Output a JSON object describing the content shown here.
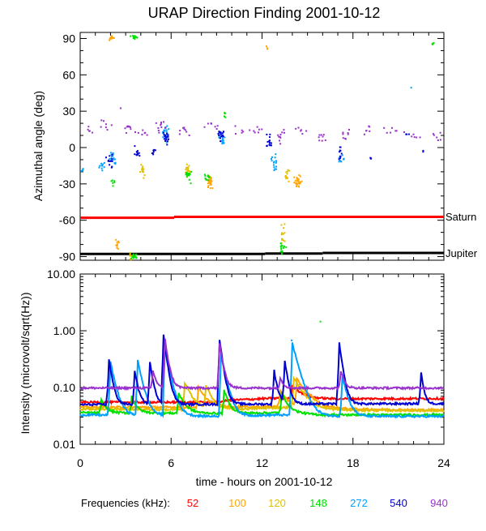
{
  "chart_data": [
    {
      "type": "scatter",
      "title": "URAP Direction Finding  2001-10-12",
      "ylabel": "Azimuthal angle (deg)",
      "ylim": [
        -93,
        95
      ],
      "xlim": [
        0,
        24
      ],
      "yticks": [
        -90,
        -60,
        -30,
        0,
        30,
        60,
        90
      ],
      "reference_lines": [
        {
          "name": "Saturn",
          "color": "#ff0000",
          "segments": [
            [
              0,
              -58,
              6.2,
              -58
            ],
            [
              6.2,
              -57.2,
              24,
              -57.2
            ]
          ]
        },
        {
          "name": "Jupiter",
          "color": "#000000",
          "segments": [
            [
              0,
              -87.8,
              12.2,
              -87.8
            ],
            [
              12.2,
              -87.5,
              16.0,
              -87.5
            ],
            [
              16.0,
              -87.0,
              24,
              -87.0
            ]
          ]
        }
      ],
      "series": [
        {
          "name": "100",
          "color": "#ffa500",
          "clusters": [
            [
              2.0,
              91,
              0.4,
              3,
              14
            ],
            [
              2.4,
              -80,
              0.3,
              6,
              10
            ],
            [
              8.5,
              -28,
              0.3,
              7,
              28
            ],
            [
              14.3,
              -27,
              0.3,
              7,
              30
            ],
            [
              12.3,
              83,
              0.1,
              2,
              3
            ]
          ]
        },
        {
          "name": "120",
          "color": "#e0c000",
          "clusters": [
            [
              4.1,
              -20,
              0.3,
              8,
              14
            ],
            [
              7.0,
              -18,
              0.3,
              7,
              16
            ],
            [
              13.6,
              -22,
              0.2,
              8,
              14
            ],
            [
              3.3,
              -88,
              0.2,
              4,
              8
            ],
            [
              13.3,
              -70,
              0.2,
              12,
              14
            ]
          ]
        },
        {
          "name": "148",
          "color": "#00e000",
          "clusters": [
            [
              3.5,
              92,
              0.3,
              3,
              16
            ],
            [
              3.5,
              -89,
              0.3,
              3,
              18
            ],
            [
              7.1,
              -22,
              0.3,
              8,
              18
            ],
            [
              9.5,
              28,
              0.1,
              3,
              6
            ],
            [
              13.3,
              -83,
              0.3,
              8,
              14
            ],
            [
              8.3,
              -24,
              0.3,
              6,
              10
            ],
            [
              2.1,
              -28,
              0.2,
              5,
              6
            ],
            [
              23.2,
              86,
              0.1,
              2,
              4
            ]
          ]
        },
        {
          "name": "272",
          "color": "#00a0ff",
          "clusters": [
            [
              0.1,
              -18,
              0.1,
              5,
              5
            ],
            [
              1.4,
              -14,
              0.3,
              6,
              10
            ],
            [
              2.1,
              -8,
              0.3,
              9,
              18
            ],
            [
              5.6,
              12,
              0.3,
              10,
              24
            ],
            [
              9.3,
              8,
              0.3,
              8,
              20
            ],
            [
              12.8,
              -12,
              0.3,
              10,
              16
            ],
            [
              17.2,
              -10,
              0.3,
              8,
              10
            ],
            [
              21.8,
              50,
              0.05,
              1,
              1
            ]
          ]
        },
        {
          "name": "540",
          "color": "#0000d0",
          "clusters": [
            [
              1.9,
              -10,
              0.3,
              7,
              12
            ],
            [
              3.7,
              -5,
              0.3,
              8,
              12
            ],
            [
              4.8,
              -2,
              0.2,
              7,
              8
            ],
            [
              5.6,
              8,
              0.3,
              8,
              18
            ],
            [
              9.2,
              10,
              0.3,
              8,
              18
            ],
            [
              12.4,
              5,
              0.3,
              9,
              14
            ],
            [
              17.1,
              -5,
              0.2,
              8,
              10
            ],
            [
              19.1,
              -8,
              0.1,
              3,
              3
            ],
            [
              21.5,
              12,
              0.2,
              3,
              3
            ],
            [
              22.6,
              -2,
              0.1,
              2,
              2
            ]
          ]
        },
        {
          "name": "940",
          "color": "#9932cc",
          "clusters": [
            [
              0.5,
              15,
              0.3,
              5,
              5
            ],
            [
              1.6,
              18,
              0.6,
              7,
              7
            ],
            [
              3.0,
              16,
              0.6,
              6,
              8
            ],
            [
              4.0,
              14,
              0.8,
              6,
              7
            ],
            [
              5.3,
              18,
              0.6,
              10,
              10
            ],
            [
              6.8,
              15,
              0.6,
              8,
              8
            ],
            [
              8.6,
              18,
              1.0,
              5,
              7
            ],
            [
              10.5,
              15,
              1.0,
              5,
              6
            ],
            [
              11.8,
              15,
              0.6,
              6,
              6
            ],
            [
              13.2,
              10,
              0.6,
              10,
              10
            ],
            [
              14.5,
              15,
              0.6,
              6,
              6
            ],
            [
              16.0,
              10,
              0.6,
              10,
              8
            ],
            [
              17.5,
              10,
              0.6,
              8,
              8
            ],
            [
              19.0,
              14,
              0.8,
              6,
              6
            ],
            [
              20.5,
              14,
              0.8,
              6,
              6
            ],
            [
              22.0,
              10,
              0.8,
              6,
              6
            ],
            [
              23.5,
              10,
              0.5,
              6,
              6
            ],
            [
              2.6,
              33,
              0.05,
              1,
              1
            ]
          ]
        }
      ],
      "annotations": [
        "Saturn",
        "Jupiter"
      ]
    },
    {
      "type": "line",
      "ylabel": "Intensity (microvolt/sqrt(Hz))",
      "xlabel": "time - hours on 2001-10-12",
      "yscale": "log",
      "ylim": [
        0.01,
        10.0
      ],
      "xlim": [
        0,
        24
      ],
      "xticks": [
        0,
        6,
        12,
        18,
        24
      ],
      "yticks": [
        0.01,
        0.1,
        1.0,
        10.0
      ],
      "ytick_labels": [
        "0.01",
        "0.10",
        "1.00",
        "10.00"
      ],
      "series": [
        {
          "name": "52",
          "color": "#ff0000",
          "base": [
            [
              0,
              0.055
            ],
            [
              9,
              0.055
            ],
            [
              10,
              0.06
            ],
            [
              13,
              0.065
            ],
            [
              16,
              0.063
            ],
            [
              24,
              0.064
            ]
          ],
          "bursts": [
            [
              14.0,
              0.11,
              0.6
            ]
          ]
        },
        {
          "name": "100",
          "color": "#ffa500",
          "base": [
            [
              0,
              0.045
            ],
            [
              6,
              0.045
            ],
            [
              12,
              0.046
            ],
            [
              14.5,
              0.048
            ],
            [
              16,
              0.042
            ],
            [
              24,
              0.04
            ]
          ],
          "bursts": [
            [
              7.8,
              0.1,
              0.5
            ],
            [
              14.3,
              0.14,
              0.7
            ],
            [
              13.2,
              0.09,
              0.4
            ]
          ]
        },
        {
          "name": "120",
          "color": "#e0c000",
          "base": [
            [
              0,
              0.042
            ],
            [
              9,
              0.04
            ],
            [
              14,
              0.045
            ],
            [
              16,
              0.04
            ],
            [
              24,
              0.039
            ]
          ],
          "bursts": [
            [
              6.9,
              0.12,
              0.5
            ],
            [
              8.3,
              0.11,
              0.4
            ],
            [
              14.1,
              0.15,
              0.6
            ]
          ]
        },
        {
          "name": "148",
          "color": "#00e000",
          "base": [
            [
              0,
              0.036
            ],
            [
              10,
              0.035
            ],
            [
              13,
              0.036
            ],
            [
              16,
              0.033
            ],
            [
              24,
              0.033
            ]
          ],
          "bursts": [
            [
              1.4,
              0.06,
              0.3
            ],
            [
              3.4,
              0.07,
              0.3
            ],
            [
              6.5,
              0.08,
              0.4
            ],
            [
              9.5,
              0.09,
              0.3
            ],
            [
              13.3,
              0.08,
              0.4
            ]
          ]
        },
        {
          "name": "272",
          "color": "#00a0ff",
          "base": [
            [
              0,
              0.033
            ],
            [
              10,
              0.031
            ],
            [
              13,
              0.033
            ],
            [
              16,
              0.031
            ],
            [
              24,
              0.031
            ]
          ],
          "bursts": [
            [
              2.0,
              0.28,
              0.3
            ],
            [
              3.8,
              0.3,
              0.3
            ],
            [
              5.6,
              0.5,
              0.3
            ],
            [
              9.3,
              0.4,
              0.3
            ],
            [
              14.0,
              0.6,
              0.4
            ],
            [
              17.3,
              0.16,
              0.3
            ]
          ]
        },
        {
          "name": "540",
          "color": "#0000d0",
          "base": [
            [
              0,
              0.05
            ],
            [
              24,
              0.052
            ]
          ],
          "bursts": [
            [
              1.9,
              0.32,
              0.2
            ],
            [
              3.6,
              0.2,
              0.2
            ],
            [
              4.6,
              0.28,
              0.2
            ],
            [
              5.5,
              0.85,
              0.2
            ],
            [
              9.2,
              0.7,
              0.2
            ],
            [
              12.8,
              0.2,
              0.2
            ],
            [
              13.5,
              0.3,
              0.2
            ],
            [
              17.1,
              0.6,
              0.2
            ],
            [
              22.5,
              0.19,
              0.15
            ]
          ]
        },
        {
          "name": "940",
          "color": "#9932cc",
          "base": [
            [
              0,
              0.098
            ],
            [
              24,
              0.098
            ]
          ],
          "bursts": [
            [
              4.8,
              0.2,
              0.2
            ],
            [
              5.6,
              0.7,
              0.2
            ],
            [
              9.2,
              0.6,
              0.2
            ],
            [
              13.2,
              0.15,
              0.2
            ],
            [
              17.2,
              0.2,
              0.2
            ]
          ]
        }
      ],
      "outliers": [
        [
          15.8,
          1.5,
          "#00e000"
        ],
        [
          13.9,
          0.7,
          "#00a0ff"
        ]
      ]
    }
  ],
  "legend": {
    "label": "Frequencies (kHz):",
    "items": [
      {
        "value": "52",
        "color": "#ff0000"
      },
      {
        "value": "100",
        "color": "#ffa500"
      },
      {
        "value": "120",
        "color": "#e0c000"
      },
      {
        "value": "148",
        "color": "#00e000"
      },
      {
        "value": "272",
        "color": "#00a0ff"
      },
      {
        "value": "540",
        "color": "#0000d0"
      },
      {
        "value": "940",
        "color": "#9932cc"
      }
    ]
  }
}
